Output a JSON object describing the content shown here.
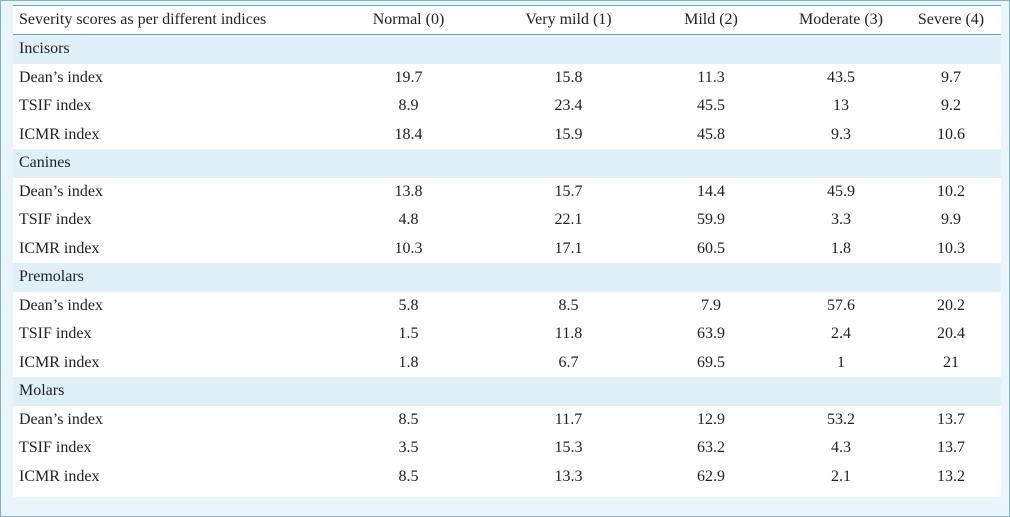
{
  "table": {
    "headers": [
      "Severity scores as per different indices",
      "Normal (0)",
      "Very mild (1)",
      "Mild (2)",
      "Moderate (3)",
      "Severe (4)"
    ],
    "groups": [
      {
        "name": "Incisors",
        "rows": [
          {
            "index": "Dean’s index",
            "values": [
              "19.7",
              "15.8",
              "11.3",
              "43.5",
              "9.7"
            ]
          },
          {
            "index": "TSIF index",
            "values": [
              "8.9",
              "23.4",
              "45.5",
              "13",
              "9.2"
            ]
          },
          {
            "index": "ICMR index",
            "values": [
              "18.4",
              "15.9",
              "45.8",
              "9.3",
              "10.6"
            ]
          }
        ]
      },
      {
        "name": "Canines",
        "rows": [
          {
            "index": "Dean’s index",
            "values": [
              "13.8",
              "15.7",
              "14.4",
              "45.9",
              "10.2"
            ]
          },
          {
            "index": "TSIF index",
            "values": [
              "4.8",
              "22.1",
              "59.9",
              "3.3",
              "9.9"
            ]
          },
          {
            "index": "ICMR index",
            "values": [
              "10.3",
              "17.1",
              "60.5",
              "1.8",
              "10.3"
            ]
          }
        ]
      },
      {
        "name": "Premolars",
        "rows": [
          {
            "index": "Dean’s index",
            "values": [
              "5.8",
              "8.5",
              "7.9",
              "57.6",
              "20.2"
            ]
          },
          {
            "index": "TSIF index",
            "values": [
              "1.5",
              "11.8",
              "63.9",
              "2.4",
              "20.4"
            ]
          },
          {
            "index": "ICMR index",
            "values": [
              "1.8",
              "6.7",
              "69.5",
              "1",
              "21"
            ]
          }
        ]
      },
      {
        "name": "Molars",
        "rows": [
          {
            "index": "Dean’s index",
            "values": [
              "8.5",
              "11.7",
              "12.9",
              "53.2",
              "13.7"
            ]
          },
          {
            "index": "TSIF index",
            "values": [
              "3.5",
              "15.3",
              "63.2",
              "4.3",
              "13.7"
            ]
          },
          {
            "index": "ICMR index",
            "values": [
              "8.5",
              "13.3",
              "62.9",
              "2.1",
              "13.2"
            ]
          }
        ]
      }
    ]
  }
}
